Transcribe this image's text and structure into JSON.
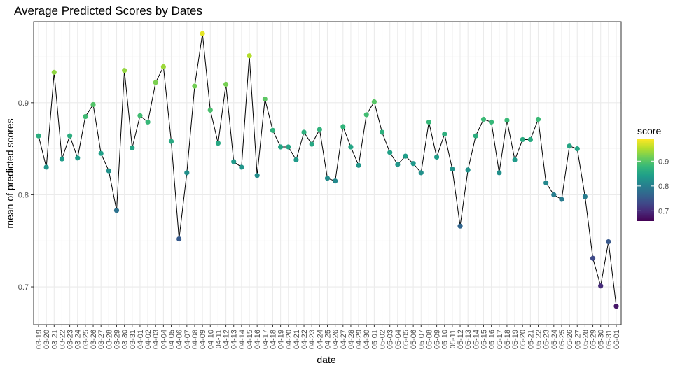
{
  "chart_data": {
    "type": "scatter",
    "title": "Average Predicted Scores by Dates",
    "xlabel": "date",
    "ylabel": "mean of predicted scores",
    "ylim": [
      0.659,
      0.988
    ],
    "y_ticks": [
      0.7,
      0.8,
      0.9
    ],
    "y_tick_labels": [
      "0.7",
      "0.8",
      "0.9"
    ],
    "grid": true,
    "connected_line": true,
    "line_color": "#000000",
    "categories": [
      "03-19",
      "03-20",
      "03-21",
      "03-22",
      "03-23",
      "03-24",
      "03-25",
      "03-26",
      "03-27",
      "03-28",
      "03-29",
      "03-30",
      "03-31",
      "04-01",
      "04-02",
      "04-03",
      "04-04",
      "04-05",
      "04-06",
      "04-07",
      "04-08",
      "04-09",
      "04-10",
      "04-11",
      "04-12",
      "04-13",
      "04-14",
      "04-15",
      "04-16",
      "04-17",
      "04-18",
      "04-19",
      "04-20",
      "04-21",
      "04-22",
      "04-23",
      "04-24",
      "04-25",
      "04-26",
      "04-27",
      "04-28",
      "04-29",
      "04-30",
      "05-01",
      "05-02",
      "05-03",
      "05-04",
      "05-05",
      "05-06",
      "05-07",
      "05-08",
      "05-09",
      "05-10",
      "05-11",
      "05-12",
      "05-13",
      "05-14",
      "05-15",
      "05-16",
      "05-17",
      "05-18",
      "05-19",
      "05-20",
      "05-21",
      "05-22",
      "05-23",
      "05-24",
      "05-25",
      "05-26",
      "05-27",
      "05-28",
      "05-29",
      "05-30",
      "05-31",
      "06-01"
    ],
    "values": [
      0.864,
      0.83,
      0.933,
      0.839,
      0.864,
      0.84,
      0.885,
      0.898,
      0.845,
      0.826,
      0.783,
      0.935,
      0.851,
      0.886,
      0.879,
      0.922,
      0.939,
      0.858,
      0.752,
      0.824,
      0.918,
      0.975,
      0.892,
      0.856,
      0.92,
      0.836,
      0.83,
      0.951,
      0.821,
      0.904,
      0.87,
      0.852,
      0.852,
      0.838,
      0.868,
      0.855,
      0.871,
      0.818,
      0.815,
      0.874,
      0.852,
      0.832,
      0.887,
      0.901,
      0.868,
      0.846,
      0.833,
      0.842,
      0.834,
      0.824,
      0.879,
      0.841,
      0.866,
      0.828,
      0.766,
      0.827,
      0.864,
      0.882,
      0.879,
      0.824,
      0.881,
      0.838,
      0.86,
      0.86,
      0.882,
      0.813,
      0.8,
      0.795,
      0.853,
      0.85,
      0.798,
      0.731,
      0.701,
      0.749,
      0.679
    ],
    "color_scale": {
      "name": "viridis",
      "domain": [
        0.659,
        0.988
      ],
      "stops": [
        "#440154",
        "#482878",
        "#3E4A89",
        "#31688E",
        "#26828E",
        "#1F9E89",
        "#35B779",
        "#6DCD59",
        "#B4DE2C",
        "#FDE725"
      ]
    },
    "legend": {
      "title": "score",
      "position": "right",
      "ticks": [
        0.7,
        0.8,
        0.9
      ],
      "tick_labels": [
        "0.7",
        "0.8",
        "0.9"
      ]
    }
  }
}
